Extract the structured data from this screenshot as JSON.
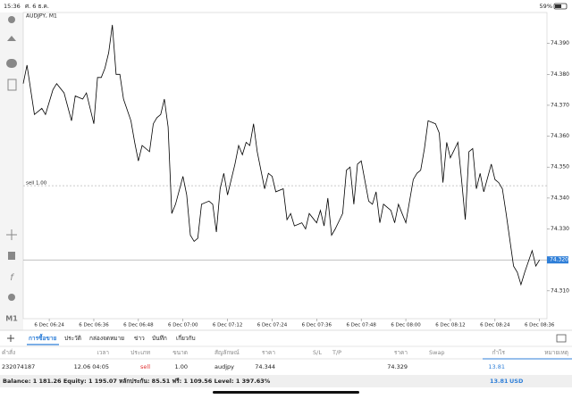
{
  "status_bar": {
    "time": "15:36",
    "date": "ศ. 6 ธ.ค.",
    "battery": "59%"
  },
  "chart_data": {
    "type": "line",
    "title": "AUDJPY, M1",
    "color": "#000000",
    "grid": false,
    "x": [
      "6 Dec 06:17",
      "6 Dec 06:18",
      "6 Dec 06:20",
      "6 Dec 06:22",
      "6 Dec 06:23",
      "6 Dec 06:25",
      "6 Dec 06:26",
      "6 Dec 06:28",
      "6 Dec 06:30",
      "6 Dec 06:31",
      "6 Dec 06:33",
      "6 Dec 06:34",
      "6 Dec 06:36",
      "6 Dec 06:37",
      "6 Dec 06:38",
      "6 Dec 06:39",
      "6 Dec 06:40",
      "6 Dec 06:41",
      "6 Dec 06:42",
      "6 Dec 06:43",
      "6 Dec 06:44",
      "6 Dec 06:46",
      "6 Dec 06:47",
      "6 Dec 06:48",
      "6 Dec 06:49",
      "6 Dec 06:51",
      "6 Dec 06:52",
      "6 Dec 06:53",
      "6 Dec 06:54",
      "6 Dec 06:55",
      "6 Dec 06:56",
      "6 Dec 06:57",
      "6 Dec 06:58",
      "6 Dec 07:00",
      "6 Dec 07:01",
      "6 Dec 07:02",
      "6 Dec 07:03",
      "6 Dec 07:04",
      "6 Dec 07:05",
      "6 Dec 07:07",
      "6 Dec 07:08",
      "6 Dec 07:09",
      "6 Dec 07:10",
      "6 Dec 07:11",
      "6 Dec 07:12",
      "6 Dec 07:14",
      "6 Dec 07:15",
      "6 Dec 07:16",
      "6 Dec 07:17",
      "6 Dec 07:18",
      "6 Dec 07:19",
      "6 Dec 07:20",
      "6 Dec 07:22",
      "6 Dec 07:23",
      "6 Dec 07:24",
      "6 Dec 07:25",
      "6 Dec 07:27",
      "6 Dec 07:28",
      "6 Dec 07:29",
      "6 Dec 07:30",
      "6 Dec 07:32",
      "6 Dec 07:33",
      "6 Dec 07:34",
      "6 Dec 07:36",
      "6 Dec 07:37",
      "6 Dec 07:38",
      "6 Dec 07:39",
      "6 Dec 07:40",
      "6 Dec 07:41",
      "6 Dec 07:43",
      "6 Dec 07:44",
      "6 Dec 07:45",
      "6 Dec 07:46",
      "6 Dec 07:47",
      "6 Dec 07:48",
      "6 Dec 07:50",
      "6 Dec 07:51",
      "6 Dec 07:52",
      "6 Dec 07:53",
      "6 Dec 07:54",
      "6 Dec 07:56",
      "6 Dec 07:57",
      "6 Dec 07:58",
      "6 Dec 07:59",
      "6 Dec 08:00",
      "6 Dec 08:02",
      "6 Dec 08:03",
      "6 Dec 08:04",
      "6 Dec 08:05",
      "6 Dec 08:06",
      "6 Dec 08:08",
      "6 Dec 08:09",
      "6 Dec 08:10",
      "6 Dec 08:11",
      "6 Dec 08:12",
      "6 Dec 08:14",
      "6 Dec 08:15",
      "6 Dec 08:16",
      "6 Dec 08:17",
      "6 Dec 08:18",
      "6 Dec 08:19",
      "6 Dec 08:20",
      "6 Dec 08:21",
      "6 Dec 08:23",
      "6 Dec 08:24",
      "6 Dec 08:25",
      "6 Dec 08:26",
      "6 Dec 08:27",
      "6 Dec 08:29",
      "6 Dec 08:30",
      "6 Dec 08:31",
      "6 Dec 08:32",
      "6 Dec 08:34",
      "6 Dec 08:35",
      "6 Dec 08:36"
    ],
    "values": [
      74.377,
      74.383,
      74.367,
      74.369,
      74.367,
      74.375,
      74.377,
      74.374,
      74.365,
      74.373,
      74.372,
      74.374,
      74.364,
      74.379,
      74.379,
      74.382,
      74.387,
      74.396,
      74.38,
      74.38,
      74.372,
      74.365,
      74.358,
      74.352,
      74.357,
      74.355,
      74.364,
      74.366,
      74.367,
      74.372,
      74.363,
      74.335,
      74.338,
      74.347,
      74.341,
      74.328,
      74.326,
      74.327,
      74.338,
      74.339,
      74.338,
      74.329,
      74.343,
      74.348,
      74.341,
      74.351,
      74.357,
      74.354,
      74.358,
      74.357,
      74.364,
      74.355,
      74.343,
      74.348,
      74.347,
      74.342,
      74.343,
      74.333,
      74.335,
      74.331,
      74.332,
      74.33,
      74.335,
      74.332,
      74.336,
      74.331,
      74.34,
      74.328,
      74.33,
      74.335,
      74.349,
      74.35,
      74.338,
      74.351,
      74.352,
      74.339,
      74.338,
      74.342,
      74.332,
      74.338,
      74.336,
      74.332,
      74.338,
      74.335,
      74.332,
      74.346,
      74.348,
      74.349,
      74.356,
      74.365,
      74.364,
      74.361,
      74.345,
      74.358,
      74.353,
      74.358,
      74.346,
      74.333,
      74.355,
      74.356,
      74.343,
      74.348,
      74.342,
      74.351,
      74.346,
      74.345,
      74.343,
      74.335,
      74.318,
      74.316,
      74.312,
      74.316,
      74.323,
      74.318,
      74.32
    ],
    "xlim": [
      "6 Dec 06:17",
      "6 Dec 08:38"
    ],
    "xticks": [
      "6 Dec 06:24",
      "6 Dec 06:36",
      "6 Dec 06:48",
      "6 Dec 07:00",
      "6 Dec 07:12",
      "6 Dec 07:24",
      "6 Dec 07:36",
      "6 Dec 07:48",
      "6 Dec 08:00",
      "6 Dec 08:12",
      "6 Dec 08:24",
      "6 Dec 08:36"
    ],
    "ylim": [
      74.301,
      74.4
    ],
    "yticks": [
      {
        "value": 74.31,
        "label": "74.310"
      },
      {
        "value": 74.33,
        "label": "74.330"
      },
      {
        "value": 74.34,
        "label": "74.340"
      },
      {
        "value": 74.35,
        "label": "74.350"
      },
      {
        "value": 74.36,
        "label": "74.360"
      },
      {
        "value": 74.37,
        "label": "74.370"
      },
      {
        "value": 74.38,
        "label": "74.380"
      },
      {
        "value": 74.39,
        "label": "74.390"
      }
    ],
    "last_price": {
      "value": 74.32,
      "label": "74.320"
    },
    "order_line": {
      "value": 74.344,
      "label": "sell 1.00"
    }
  },
  "toolbar": {
    "timeframe": "M1"
  },
  "tabs": [
    "การซื้อขาย",
    "ประวัติ",
    "กล่องจดหมาย",
    "ข่าว",
    "บันทึก",
    "เกี่ยวกับ"
  ],
  "table": {
    "headers": [
      "คำสั่ง",
      "เวลา",
      "ประเภท",
      "ขนาด",
      "สัญลักษณ์",
      "ราคา",
      "S/L",
      "T/P",
      "ราคา",
      "Swap",
      "กำไร",
      "หมายเหตุ"
    ],
    "rows": [
      [
        "232074187",
        "12.06 04:05",
        "sell",
        "1.00",
        "audjpy",
        "74.344",
        null,
        null,
        "74.329",
        null,
        "13.81",
        null
      ]
    ]
  },
  "footer": {
    "summary": "Balance: 1 181.26 Equity: 1 195.07 หลักประกัน: 85.51 ฟรี: 1 109.56 Level: 1 397.63%",
    "profit": "13.81",
    "currency": "USD"
  }
}
